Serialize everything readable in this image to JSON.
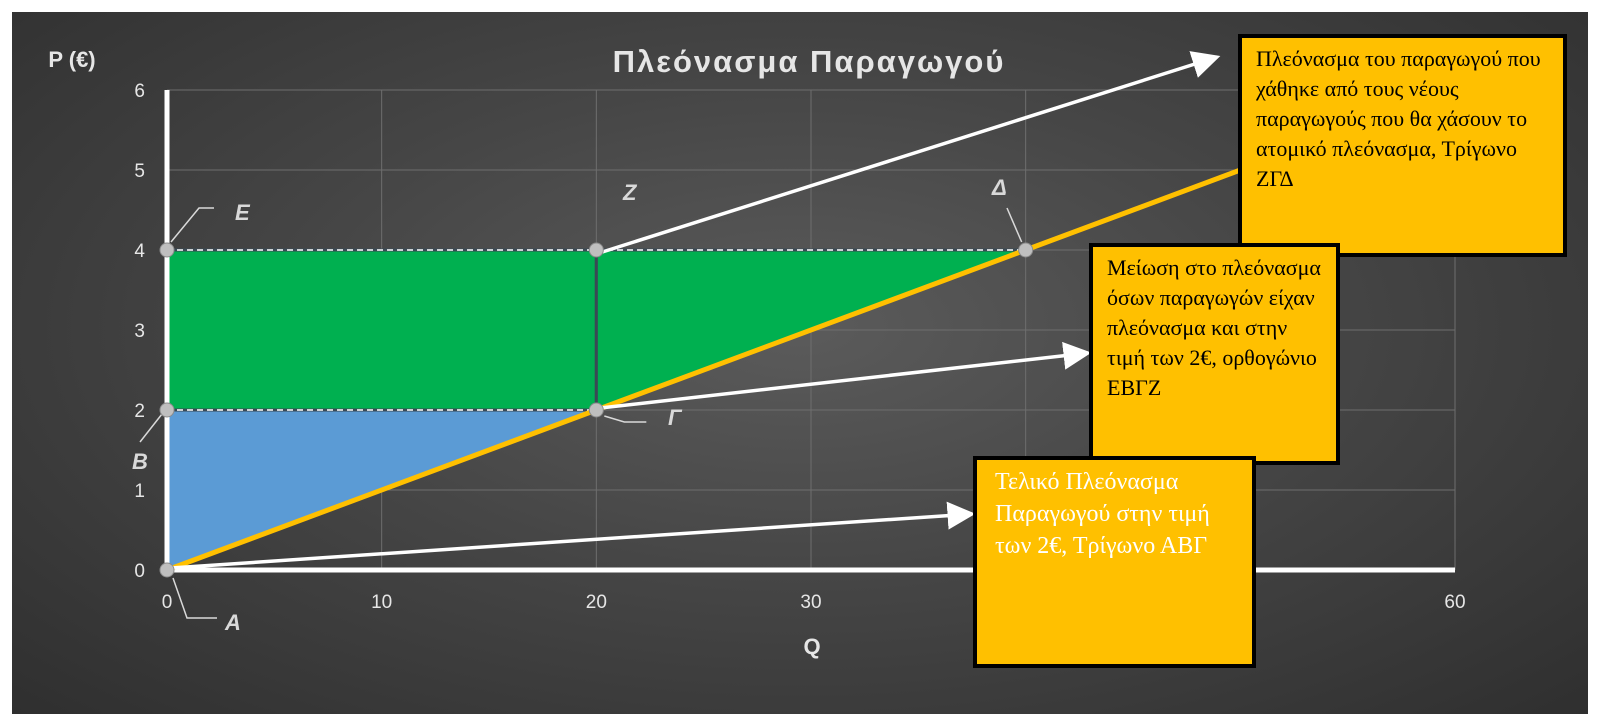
{
  "chart_data": {
    "type": "line",
    "title": "Πλεόνασμα Παραγωγού",
    "ylabel": "P (€)",
    "xlabel": "Q",
    "xlim": [
      0,
      60
    ],
    "ylim": [
      0,
      6
    ],
    "x_ticks": [
      0,
      10,
      20,
      30,
      40,
      50,
      60
    ],
    "x_tick_labels": [
      "0",
      "10",
      "20",
      "30",
      "",
      "",
      "60"
    ],
    "y_ticks": [
      0,
      1,
      2,
      3,
      4,
      5,
      6
    ],
    "y_tick_labels": [
      "0",
      "1",
      "2",
      "3",
      "4",
      "5",
      "6"
    ],
    "grid": true,
    "series": [
      {
        "values": [
          [
            0,
            0
          ],
          [
            60,
            6
          ]
        ],
        "color": "#ffc000"
      }
    ],
    "points": [
      {
        "label": "A",
        "x": 0,
        "y": 0
      },
      {
        "label": "B",
        "x": 0,
        "y": 2
      },
      {
        "label": "Γ",
        "x": 20,
        "y": 2
      },
      {
        "label": "Δ",
        "x": 40,
        "y": 4
      },
      {
        "label": "E",
        "x": 0,
        "y": 4
      },
      {
        "label": "Z",
        "x": 20,
        "y": 4
      }
    ],
    "reference_lines": [
      {
        "y": 4,
        "x_from": 0,
        "x_to": 40,
        "style": "dashed"
      },
      {
        "y": 2,
        "x_from": 0,
        "x_to": 20,
        "style": "dashed"
      }
    ],
    "areas": [
      {
        "name": "rectangle-EBGZ",
        "vertices": [
          [
            0,
            2
          ],
          [
            0,
            4
          ],
          [
            20,
            4
          ],
          [
            20,
            2
          ]
        ],
        "color": "#00b050"
      },
      {
        "name": "triangle-ZGD",
        "vertices": [
          [
            20,
            2
          ],
          [
            20,
            4
          ],
          [
            40,
            4
          ]
        ],
        "color": "#00b050"
      },
      {
        "name": "triangle-ABG",
        "vertices": [
          [
            0,
            0
          ],
          [
            0,
            2
          ],
          [
            20,
            2
          ]
        ],
        "color": "#5b9bd5"
      }
    ]
  },
  "annotations": {
    "lost_surplus": "Πλεόνασμα του παραγωγού που χάθηκε από τους νέους παραγωγούς που θα χάσουν το ατομικό πλεόνασμα, Τρίγωνο ΖΓΔ",
    "reduced_surplus": "Μείωση στο πλεόνασμα όσων παραγωγών είχαν πλεόνασμα και στην τιμή των 2€, ορθογώνιο ΕΒΓΖ",
    "final_surplus": "Τελικό Πλεόνασμα Παραγωγού στην τιμή των 2€, Τρίγωνο ΑΒΓ"
  },
  "colors": {
    "background": "#464646",
    "supply_line": "#ffc000",
    "green_area": "#00b050",
    "blue_area": "#5b9bd5",
    "callout": "#ffc000",
    "axis": "#ffffff",
    "point_marker": "#bfbfbf"
  }
}
